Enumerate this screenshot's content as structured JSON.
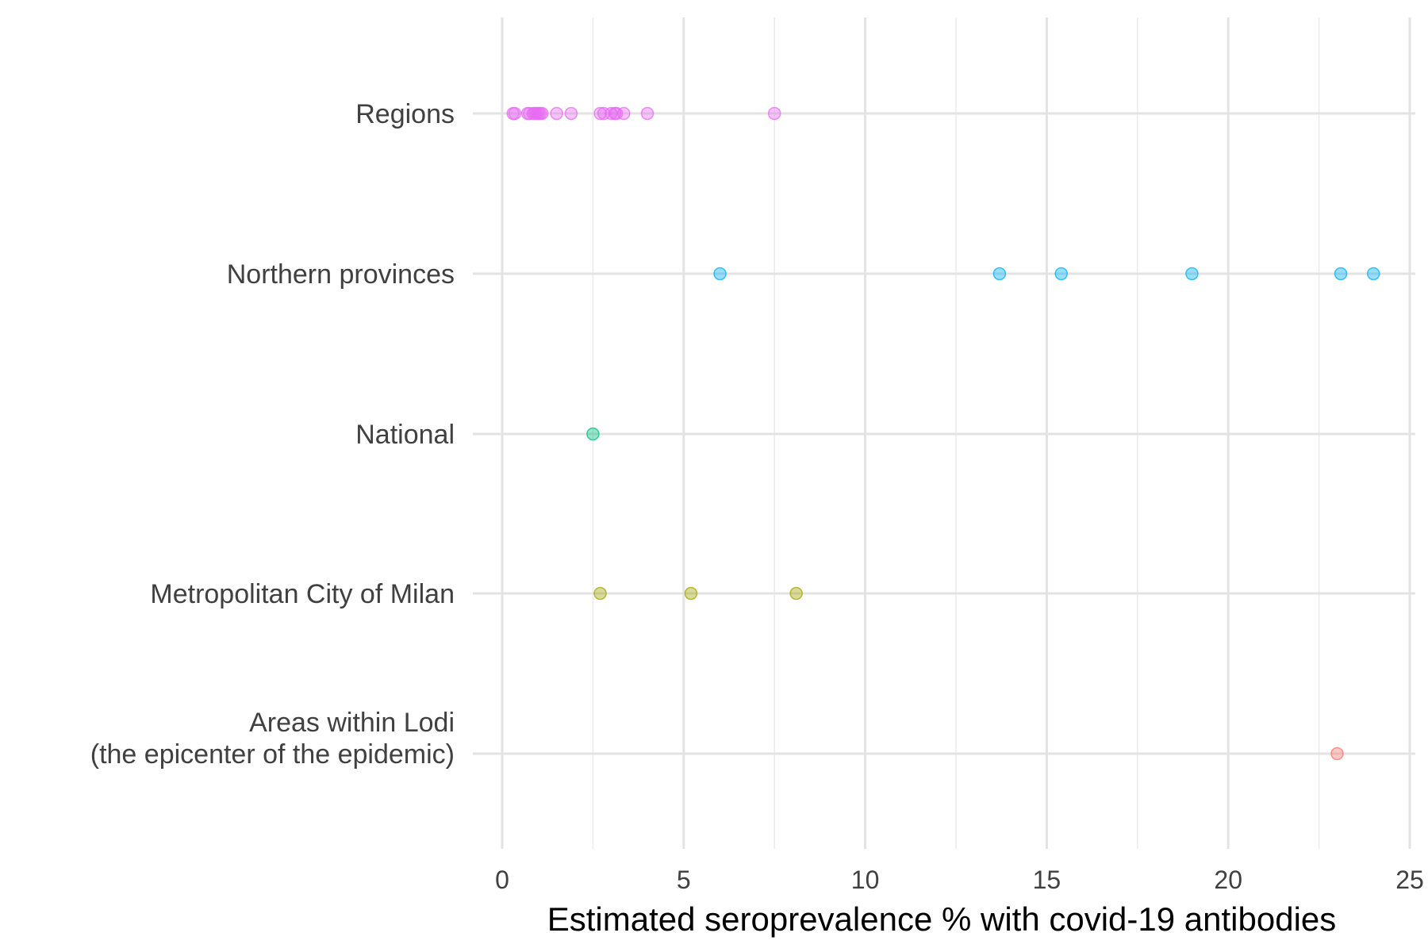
{
  "chart_data": {
    "type": "scatter",
    "title": "",
    "xlabel": "Estimated seroprevalence % with covid-19 antibodies",
    "ylabel": "",
    "xlim": [
      0,
      25
    ],
    "x_ticks": [
      "0",
      "5",
      "10",
      "15",
      "20",
      "25"
    ],
    "grid": true,
    "legend": "none",
    "categories": [
      {
        "label": [
          "Regions"
        ],
        "color": "#e76bf3",
        "values": [
          0.3,
          0.35,
          0.7,
          0.75,
          0.85,
          0.9,
          0.95,
          1.0,
          1.05,
          1.1,
          1.5,
          1.9,
          2.7,
          2.8,
          3.0,
          3.1,
          3.15,
          3.35,
          4.0,
          7.5
        ]
      },
      {
        "label": [
          "Northern provinces"
        ],
        "color": "#00b0f6",
        "values": [
          6.0,
          13.7,
          15.4,
          19.0,
          23.1,
          24.0
        ]
      },
      {
        "label": [
          "National"
        ],
        "color": "#00bf7d",
        "values": [
          2.5
        ]
      },
      {
        "label": [
          "Metropolitan City of Milan"
        ],
        "color": "#a3a500",
        "values": [
          2.7,
          5.2,
          8.1
        ]
      },
      {
        "label": [
          "Areas within Lodi",
          "(the epicenter of the epidemic)"
        ],
        "color": "#f8766d",
        "values": [
          23.0
        ]
      }
    ]
  }
}
